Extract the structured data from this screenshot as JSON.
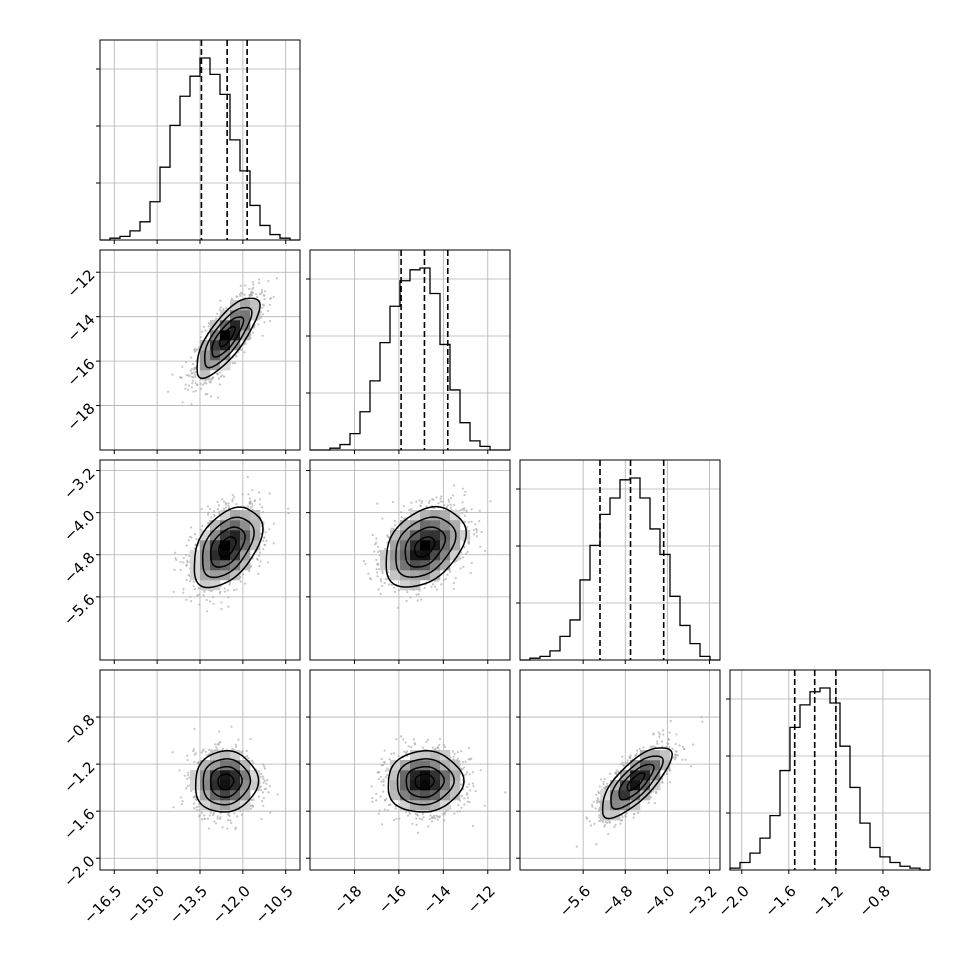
{
  "chart_data": {
    "type": "corner",
    "parameters": [
      {
        "id": "p0",
        "label": "",
        "range": [
          -17.0,
          -10.0
        ],
        "ticks": [
          -16.5,
          -15.0,
          -13.5,
          -12.0,
          -10.5
        ],
        "tick_labels": [
          "−16.5",
          "−15.0",
          "−13.5",
          "−12.0",
          "−10.5"
        ],
        "quantiles": [
          -13.45,
          -12.55,
          -11.85
        ],
        "hist_bin_edges": [
          -17.0,
          -16.65,
          -16.3,
          -15.95,
          -15.6,
          -15.25,
          -14.9,
          -14.55,
          -14.2,
          -13.85,
          -13.5,
          -13.15,
          -12.8,
          -12.45,
          -12.1,
          -11.75,
          -11.4,
          -11.05,
          -10.7,
          -10.35,
          -10.0
        ],
        "hist_counts": [
          0,
          1,
          2,
          5,
          10,
          21,
          40,
          63,
          79,
          90,
          100,
          91,
          80,
          55,
          38,
          19,
          8,
          3,
          1,
          0
        ],
        "hist_grid_fractions": [
          0.3,
          0.6,
          0.9
        ]
      },
      {
        "id": "p1",
        "label": "",
        "range": [
          -20.0,
          -11.0
        ],
        "ticks": [
          -18,
          -16,
          -14,
          -12
        ],
        "tick_labels": [
          "−18",
          "−16",
          "−14",
          "−12"
        ],
        "quantiles": [
          -15.9,
          -14.85,
          -13.8
        ],
        "hist_bin_edges": [
          -20.0,
          -19.55,
          -19.1,
          -18.65,
          -18.2,
          -17.75,
          -17.3,
          -16.85,
          -16.4,
          -15.95,
          -15.5,
          -15.05,
          -14.6,
          -14.15,
          -13.7,
          -13.25,
          -12.8,
          -12.35,
          -11.9,
          -11.45,
          -11.0
        ],
        "hist_counts": [
          0,
          0,
          1,
          3,
          9,
          21,
          38,
          59,
          79,
          93,
          99,
          100,
          86,
          58,
          33,
          15,
          5,
          2,
          0,
          0
        ],
        "hist_grid_fractions": [
          0.3,
          0.6,
          0.9
        ]
      },
      {
        "id": "p2",
        "label": "",
        "range": [
          -6.8,
          -3.0
        ],
        "ticks": [
          -5.6,
          -4.8,
          -4.0,
          -3.2
        ],
        "tick_labels": [
          "−5.6",
          "−4.8",
          "−4.0",
          "−3.2"
        ],
        "quantiles": [
          -5.28,
          -4.7,
          -4.07
        ],
        "hist_bin_edges": [
          -6.8,
          -6.61,
          -6.42,
          -6.23,
          -6.04,
          -5.85,
          -5.66,
          -5.47,
          -5.28,
          -5.09,
          -4.9,
          -4.71,
          -4.52,
          -4.33,
          -4.14,
          -3.95,
          -3.76,
          -3.57,
          -3.38,
          -3.19,
          -3.0
        ],
        "hist_counts": [
          0,
          1,
          2,
          5,
          13,
          22,
          44,
          63,
          80,
          89,
          99,
          100,
          89,
          72,
          58,
          35,
          19,
          9,
          2,
          0
        ],
        "hist_grid_fractions": [
          0.3,
          0.6,
          0.9
        ]
      },
      {
        "id": "p3",
        "label": "",
        "range": [
          -2.1,
          -0.4
        ],
        "ticks": [
          -2.0,
          -1.6,
          -1.2,
          -0.8
        ],
        "tick_labels": [
          "−2.0",
          "−1.6",
          "−1.2",
          "−0.8"
        ],
        "quantiles": [
          -1.55,
          -1.38,
          -1.2
        ],
        "hist_bin_edges": [
          -2.1,
          -2.015,
          -1.93,
          -1.845,
          -1.76,
          -1.675,
          -1.59,
          -1.505,
          -1.42,
          -1.335,
          -1.25,
          -1.165,
          -1.08,
          -0.995,
          -0.91,
          -0.825,
          -0.74,
          -0.655,
          -0.57,
          -0.485,
          -0.4
        ],
        "hist_counts": [
          1,
          4,
          9,
          17,
          29,
          53,
          76,
          88,
          95,
          97,
          89,
          66,
          44,
          25,
          12,
          7,
          4,
          2,
          1,
          0
        ],
        "hist_grid_fractions": [
          0.3,
          0.6,
          0.9
        ]
      }
    ],
    "pairs": [
      {
        "x": "p0",
        "y": "p1",
        "mean": [
          -12.55,
          -14.9
        ],
        "sd": [
          0.55,
          0.9
        ],
        "rho": 0.76
      },
      {
        "x": "p0",
        "y": "p2",
        "mean": [
          -12.55,
          -4.65
        ],
        "sd": [
          0.6,
          0.38
        ],
        "rho": 0.45
      },
      {
        "x": "p1",
        "y": "p2",
        "mean": [
          -14.85,
          -4.65
        ],
        "sd": [
          0.9,
          0.38
        ],
        "rho": 0.35
      },
      {
        "x": "p0",
        "y": "p3",
        "mean": [
          -12.6,
          -1.35
        ],
        "sd": [
          0.55,
          0.13
        ],
        "rho": 0.05
      },
      {
        "x": "p1",
        "y": "p3",
        "mean": [
          -14.85,
          -1.35
        ],
        "sd": [
          0.85,
          0.13
        ],
        "rho": 0.05
      },
      {
        "x": "p2",
        "y": "p3",
        "mean": [
          -4.6,
          -1.35
        ],
        "sd": [
          0.33,
          0.15
        ],
        "rho": 0.75
      }
    ],
    "contour_levels_sigma": [
      0.5,
      1.0,
      1.5,
      2.0
    ],
    "grid": true,
    "colors": {
      "line": "#000000",
      "grid": "#b0b0b0",
      "scatter": "#a8a8a8",
      "density_light": "#f2f2f2",
      "density_dark": "#000000"
    }
  }
}
